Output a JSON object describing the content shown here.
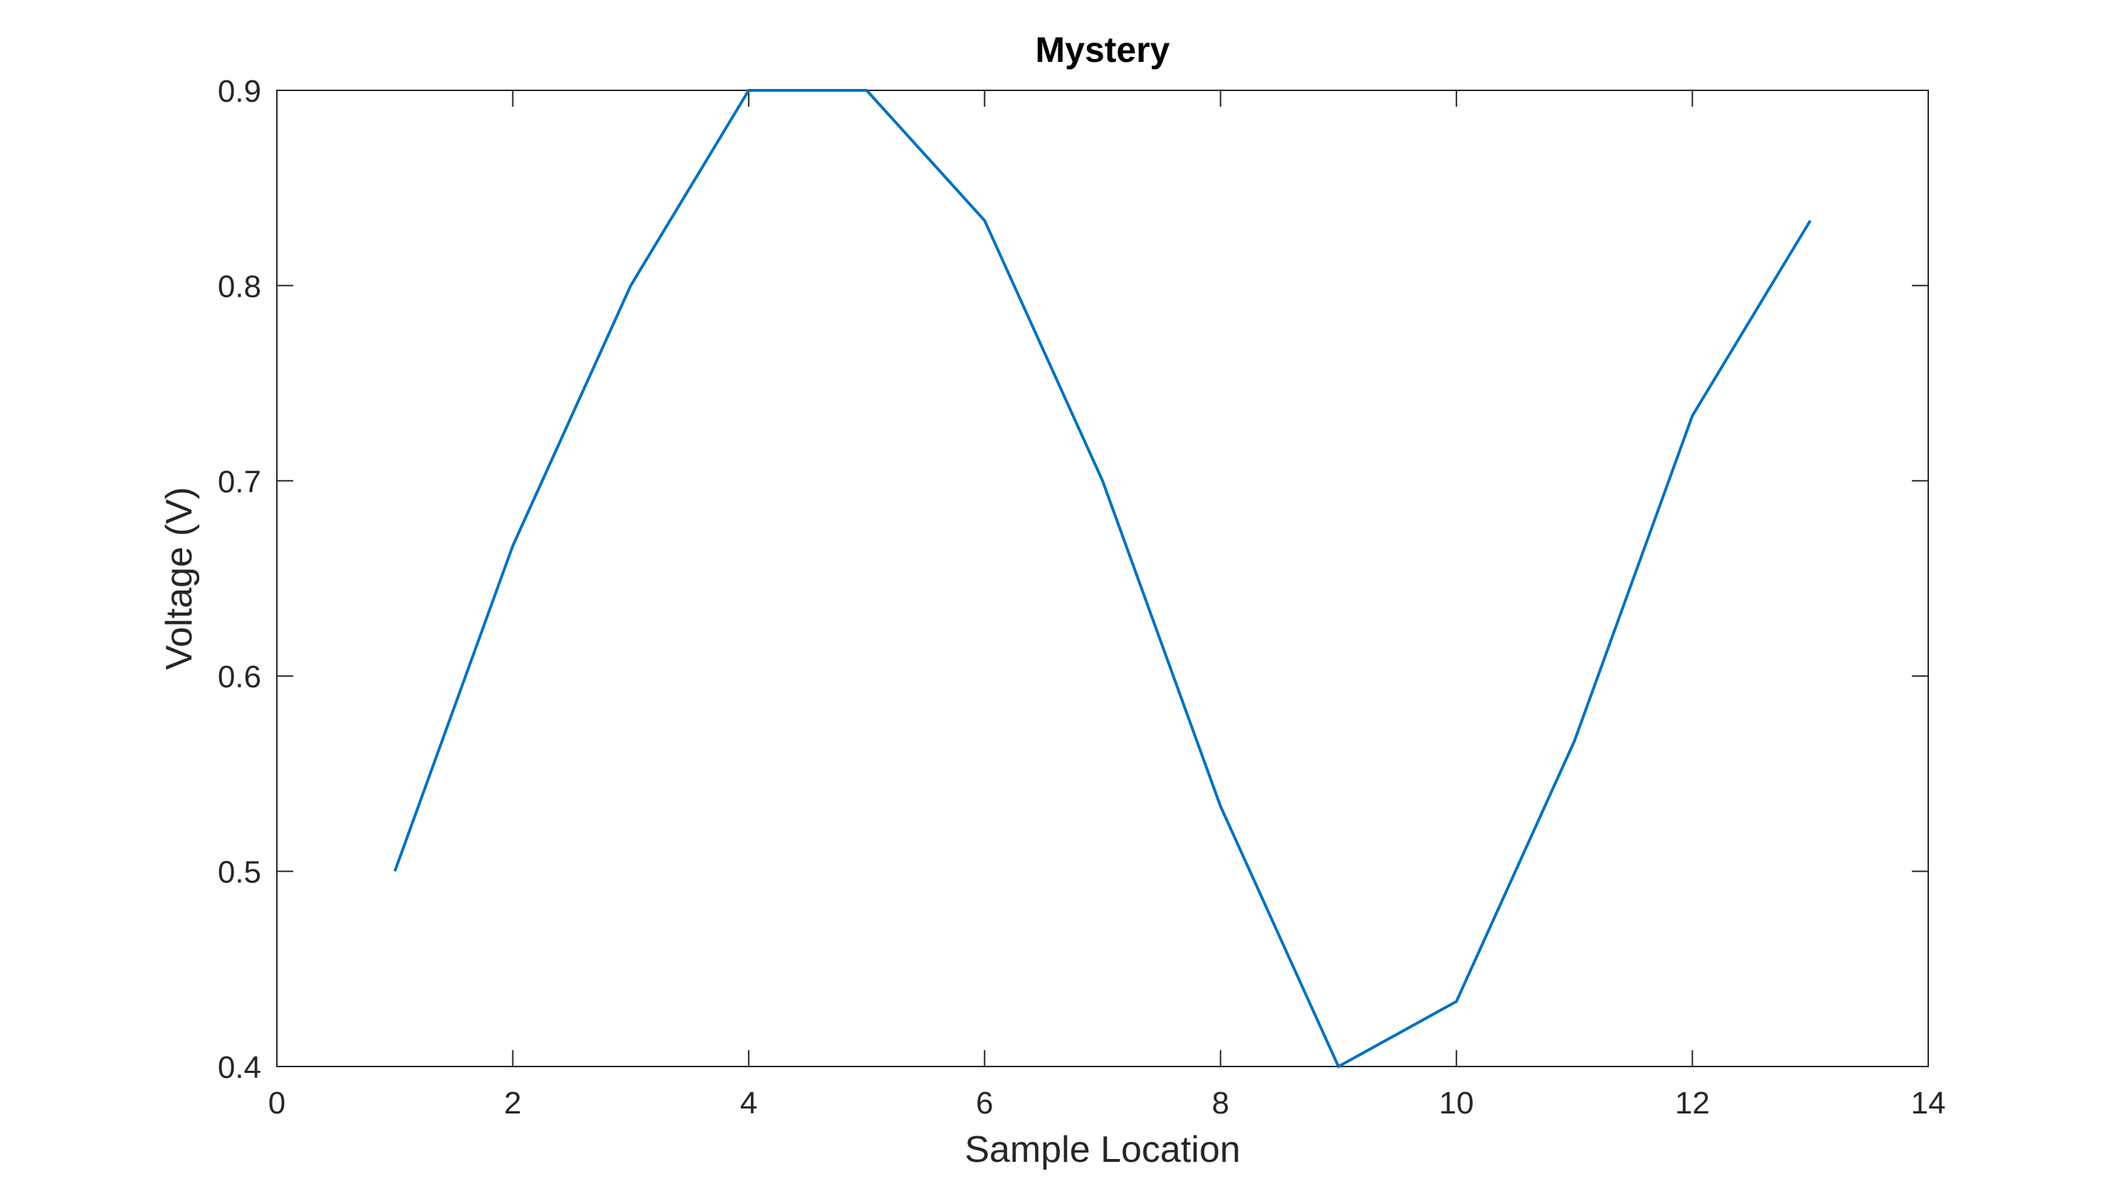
{
  "chart_data": {
    "type": "line",
    "title": "Mystery",
    "xlabel": "Sample Location",
    "ylabel": "Voltage (V)",
    "xlim": [
      0,
      14
    ],
    "ylim": [
      0.4,
      0.9
    ],
    "xticks": [
      0,
      2,
      4,
      6,
      8,
      10,
      12,
      14
    ],
    "xtick_labels": [
      "0",
      "2",
      "4",
      "6",
      "8",
      "10",
      "12",
      "14"
    ],
    "yticks": [
      0.4,
      0.5,
      0.6,
      0.7,
      0.8,
      0.9
    ],
    "ytick_labels": [
      "0.4",
      "0.5",
      "0.6",
      "0.7",
      "0.8",
      "0.9"
    ],
    "grid": false,
    "box": true,
    "series": [
      {
        "x": [
          1,
          2,
          3,
          4,
          5,
          6,
          7,
          8,
          9,
          10,
          11,
          12,
          13
        ],
        "values": [
          0.5,
          0.6667,
          0.8,
          0.9,
          0.9,
          0.8333,
          0.7,
          0.5333,
          0.4,
          0.4333,
          0.5667,
          0.7333,
          0.8333
        ],
        "color": "#0072BD"
      }
    ]
  }
}
